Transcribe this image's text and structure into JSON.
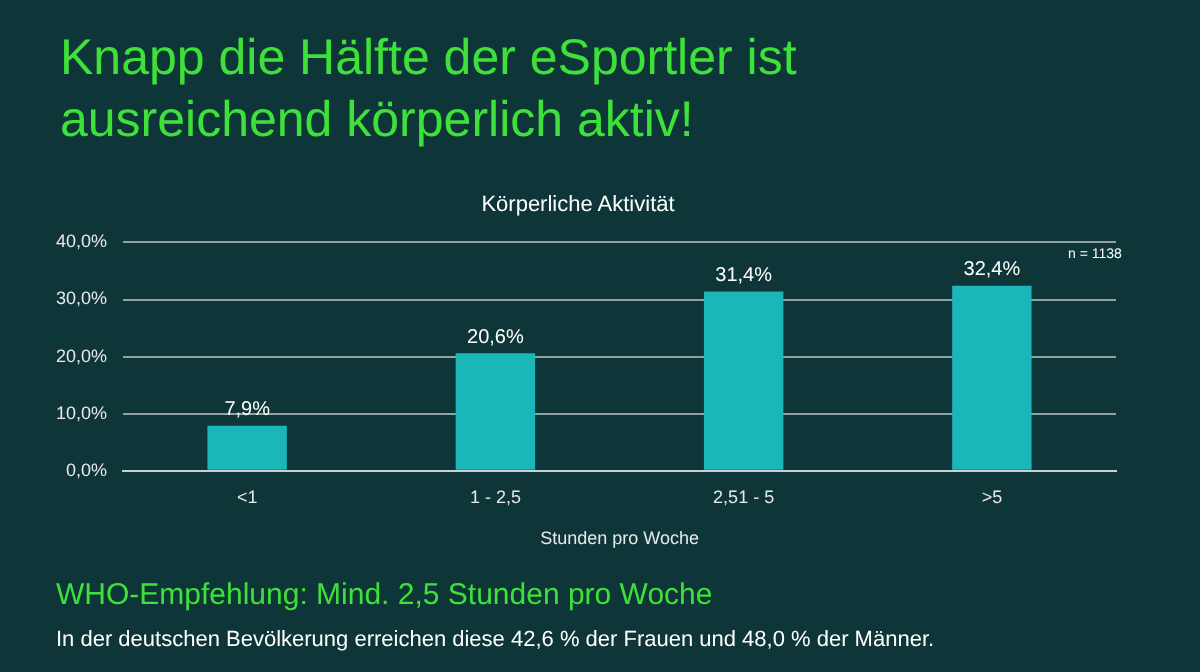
{
  "chart_data": {
    "type": "bar",
    "title": "Knapp die Hälfte der eSportler ist ausreichend körperlich aktiv!",
    "subtitle": "Körperliche Aktivität",
    "xlabel": "Stunden pro Woche",
    "categories": [
      "<1",
      "1 - 2,5",
      "2,51 - 5",
      ">5"
    ],
    "values": [
      7.9,
      20.6,
      31.4,
      32.4
    ],
    "color": "#1bb6b9",
    "value_labels": [
      "7,9%",
      "20,6%",
      "31,4%",
      "32,4%"
    ],
    "ylim": [
      0,
      40
    ],
    "yticks": [
      {
        "value": 0,
        "label": "0,0%"
      },
      {
        "value": 10,
        "label": "10,0%"
      },
      {
        "value": 20,
        "label": "20,0%"
      },
      {
        "value": 30,
        "label": "30,0%"
      },
      {
        "value": 40,
        "label": "40,0%"
      }
    ],
    "grid": "y",
    "legend": false,
    "annotations": [
      "n = 1138",
      "WHO-Empfehlung: Mind. 2,5 Stunden pro Woche",
      "In der deutschen Bevölkerung erreichen diese 42,6 % der Frauen und 48,0 % der Männer."
    ]
  }
}
